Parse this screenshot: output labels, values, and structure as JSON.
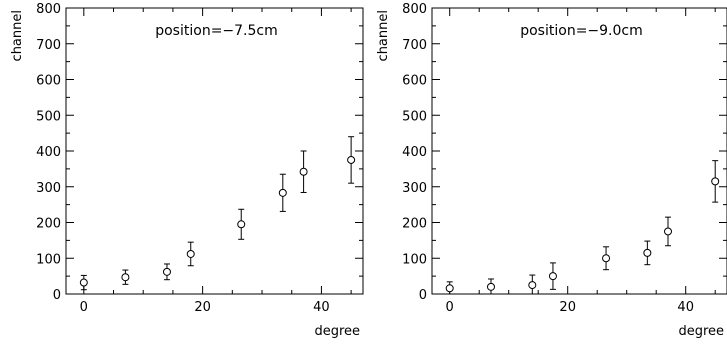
{
  "chart_data": [
    {
      "type": "scatter",
      "annotation": "position=−7.5cm",
      "xlabel": "degree",
      "ylabel": "channel",
      "xlim": [
        -3,
        47
      ],
      "ylim": [
        0,
        800
      ],
      "x_major_ticks": [
        0,
        20,
        40
      ],
      "x_tick_labels": [
        "0",
        "20",
        "40"
      ],
      "y_ticks": [
        0,
        100,
        200,
        300,
        400,
        500,
        600,
        700,
        800
      ],
      "y_tick_labels": [
        "0",
        "100",
        "200",
        "300",
        "400",
        "500",
        "600",
        "700",
        "800"
      ],
      "grid": false,
      "series": [
        {
          "marker": "open-circle",
          "x": [
            0,
            7,
            14,
            18,
            26.5,
            33.5,
            37,
            45
          ],
          "y": [
            32,
            47,
            62,
            112,
            195,
            283,
            342,
            375
          ],
          "yerr": [
            20,
            20,
            22,
            33,
            42,
            52,
            58,
            65
          ]
        }
      ]
    },
    {
      "type": "scatter",
      "annotation": "position=−9.0cm",
      "xlabel": "degree",
      "ylabel": "channel",
      "xlim": [
        -3,
        47
      ],
      "ylim": [
        0,
        800
      ],
      "x_major_ticks": [
        0,
        20,
        40
      ],
      "x_tick_labels": [
        "0",
        "20",
        "40"
      ],
      "y_ticks": [
        0,
        100,
        200,
        300,
        400,
        500,
        600,
        700,
        800
      ],
      "y_tick_labels": [
        "0",
        "100",
        "200",
        "300",
        "400",
        "500",
        "600",
        "700",
        "800"
      ],
      "grid": false,
      "series": [
        {
          "marker": "open-circle",
          "x": [
            0,
            7,
            14,
            17.5,
            26.5,
            33.5,
            37,
            45
          ],
          "y": [
            16,
            20,
            25,
            50,
            100,
            115,
            175,
            315
          ],
          "yerr": [
            18,
            22,
            28,
            37,
            32,
            33,
            40,
            58
          ]
        }
      ]
    }
  ]
}
